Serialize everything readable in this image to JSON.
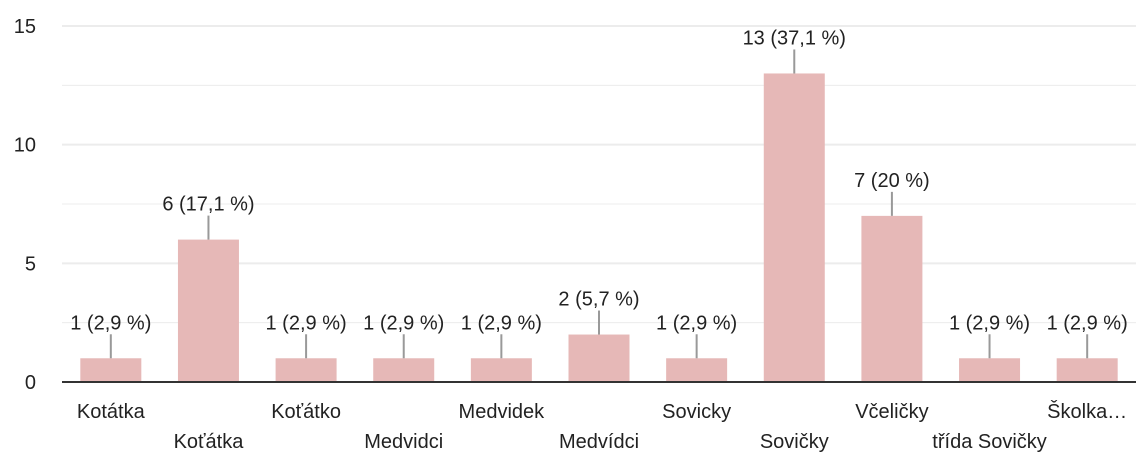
{
  "chart_data": {
    "type": "bar",
    "categories": [
      "Kotátka",
      "Koťátka",
      "Koťátko",
      "Medvidci",
      "Medvidek",
      "Medvídci",
      "Sovicky",
      "Sovičky",
      "Včeličky",
      "třída Sovičky",
      "Školka…"
    ],
    "values": [
      1,
      6,
      1,
      1,
      1,
      2,
      1,
      13,
      7,
      1,
      1
    ],
    "data_labels": [
      "1 (2,9 %)",
      "6 (17,1 %)",
      "1 (2,9 %)",
      "1 (2,9 %)",
      "1 (2,9 %)",
      "2 (5,7 %)",
      "1 (2,9 %)",
      "13 (37,1 %)",
      "7 (20 %)",
      "1 (2,9 %)",
      "1 (2,9 %)"
    ],
    "yticks": [
      "0",
      "5",
      "10",
      "15"
    ],
    "ylim": [
      0,
      15
    ],
    "grid": true,
    "bar_color": "#e6b8b7",
    "leader_color": "#999999",
    "axis_color": "#333333",
    "grid_color": "#ececec"
  }
}
